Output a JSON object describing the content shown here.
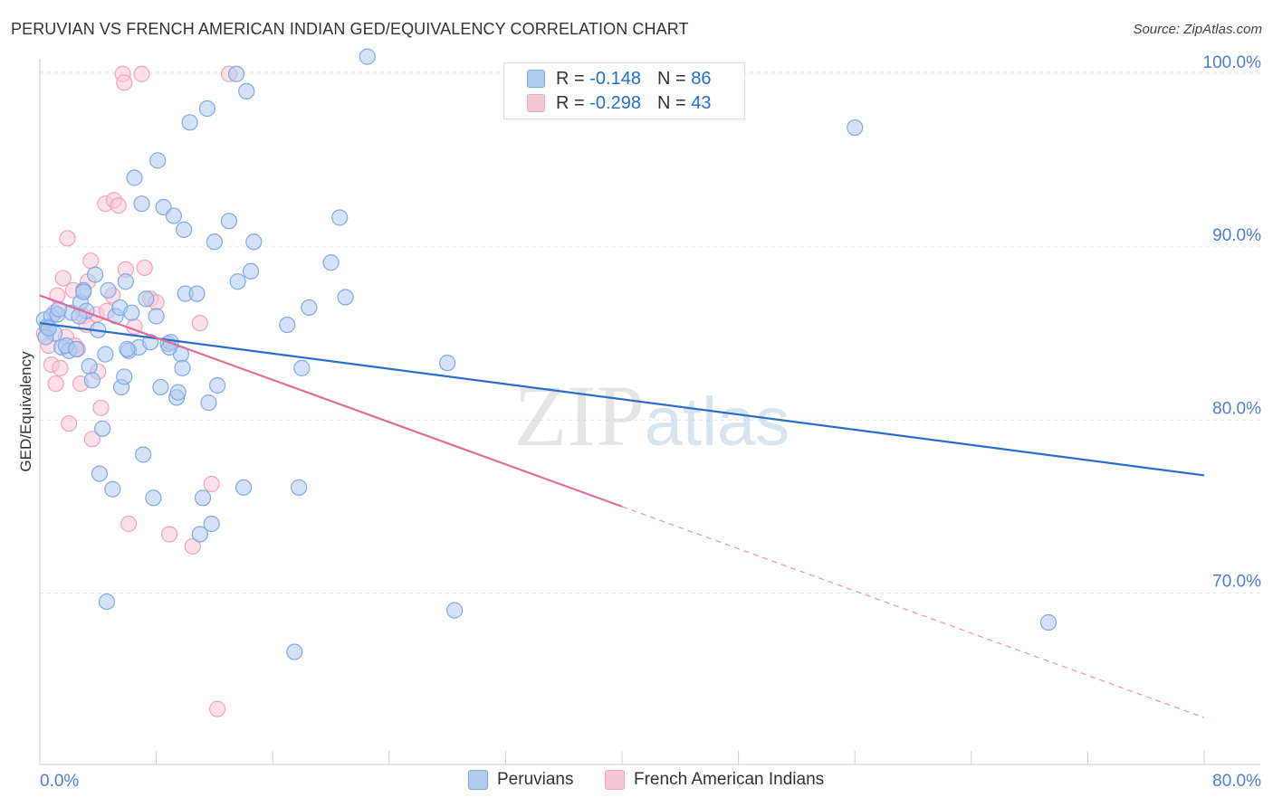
{
  "chart_data": {
    "type": "scatter",
    "title": "PERUVIAN VS FRENCH AMERICAN INDIAN GED/EQUIVALENCY CORRELATION CHART",
    "source": "Source: ZipAtlas.com",
    "watermark": "ZIPatlas",
    "xlabel": "",
    "ylabel": "GED/Equivalency",
    "xlim": [
      0,
      80
    ],
    "ylim": [
      61,
      101.5
    ],
    "x_tick_labels": [
      "0.0%",
      "80.0%"
    ],
    "y_ticks": [
      70,
      80,
      90,
      100
    ],
    "y_tick_labels": [
      "70.0%",
      "80.0%",
      "90.0%",
      "100.0%"
    ],
    "grid": true,
    "legend_position": "top-center",
    "series": [
      {
        "name": "Peruvians",
        "color": "#7fa9e6",
        "fill": "#aecbf1",
        "line_color": "#2a6dcc",
        "r_label": "R =",
        "r_value": "-0.148",
        "n_label": "N =",
        "n_value": "86",
        "trend": {
          "x0": 0,
          "y0": 85.6,
          "x1": 80,
          "y1": 76.8,
          "solid_until": 80
        },
        "points": [
          [
            0.3,
            85.8
          ],
          [
            0.5,
            85.4
          ],
          [
            0.8,
            86.0
          ],
          [
            1.0,
            85.0
          ],
          [
            0.4,
            84.8
          ],
          [
            0.6,
            85.3
          ],
          [
            1.2,
            86.1
          ],
          [
            1.5,
            84.2
          ],
          [
            2.0,
            84.0
          ],
          [
            1.8,
            84.3
          ],
          [
            2.5,
            84.1
          ],
          [
            2.2,
            86.2
          ],
          [
            2.8,
            86.8
          ],
          [
            3.0,
            87.5
          ],
          [
            3.2,
            86.3
          ],
          [
            3.4,
            83.1
          ],
          [
            3.6,
            82.3
          ],
          [
            3.8,
            88.4
          ],
          [
            4.0,
            85.2
          ],
          [
            4.3,
            79.5
          ],
          [
            4.1,
            76.9
          ],
          [
            4.5,
            83.8
          ],
          [
            4.7,
            87.5
          ],
          [
            5.0,
            76.0
          ],
          [
            5.2,
            86.0
          ],
          [
            5.5,
            86.5
          ],
          [
            5.6,
            81.9
          ],
          [
            5.8,
            82.5
          ],
          [
            5.9,
            88.0
          ],
          [
            6.1,
            84.0
          ],
          [
            6.3,
            86.2
          ],
          [
            6.5,
            94.0
          ],
          [
            6.8,
            84.2
          ],
          [
            7.0,
            92.5
          ],
          [
            7.3,
            87.0
          ],
          [
            7.6,
            84.5
          ],
          [
            7.8,
            75.5
          ],
          [
            8.0,
            86.0
          ],
          [
            8.1,
            95.0
          ],
          [
            8.3,
            81.9
          ],
          [
            8.5,
            92.3
          ],
          [
            8.8,
            84.4
          ],
          [
            9.0,
            84.5
          ],
          [
            9.2,
            91.8
          ],
          [
            9.4,
            81.3
          ],
          [
            9.5,
            81.6
          ],
          [
            9.7,
            83.8
          ],
          [
            9.8,
            83.0
          ],
          [
            9.9,
            91.0
          ],
          [
            10.0,
            87.3
          ],
          [
            10.3,
            97.2
          ],
          [
            10.8,
            87.3
          ],
          [
            11.0,
            73.4
          ],
          [
            11.2,
            75.5
          ],
          [
            11.5,
            98.0
          ],
          [
            11.6,
            81.0
          ],
          [
            11.8,
            74.0
          ],
          [
            12.0,
            90.3
          ],
          [
            12.2,
            82.0
          ],
          [
            13.0,
            91.5
          ],
          [
            13.5,
            100.0
          ],
          [
            13.6,
            88.0
          ],
          [
            14.0,
            76.1
          ],
          [
            14.2,
            99.0
          ],
          [
            14.5,
            88.6
          ],
          [
            14.7,
            90.3
          ],
          [
            17.0,
            85.5
          ],
          [
            17.5,
            66.6
          ],
          [
            17.8,
            76.1
          ],
          [
            18.0,
            83.0
          ],
          [
            18.5,
            86.5
          ],
          [
            20.0,
            89.1
          ],
          [
            20.6,
            91.7
          ],
          [
            21.0,
            87.1
          ],
          [
            22.5,
            101.0
          ],
          [
            28.0,
            83.3
          ],
          [
            28.5,
            69.0
          ],
          [
            56.0,
            96.9
          ],
          [
            69.3,
            68.3
          ],
          [
            4.6,
            69.5
          ],
          [
            2.7,
            86.0
          ],
          [
            1.3,
            86.4
          ],
          [
            3.0,
            87.4
          ],
          [
            6.0,
            84.1
          ],
          [
            7.1,
            78.0
          ],
          [
            8.9,
            84.2
          ]
        ]
      },
      {
        "name": "French American Indians",
        "color": "#f0a3bb",
        "fill": "#f7c6d6",
        "line_color": "#e06d95",
        "r_label": "R =",
        "r_value": "-0.298",
        "n_label": "N =",
        "n_value": "43",
        "trend": {
          "x0": 0,
          "y0": 87.2,
          "x1": 80,
          "y1": 62.8,
          "solid_until": 40
        },
        "points": [
          [
            0.3,
            85.0
          ],
          [
            0.6,
            84.3
          ],
          [
            0.8,
            83.2
          ],
          [
            1.0,
            86.2
          ],
          [
            1.1,
            82.1
          ],
          [
            1.2,
            87.2
          ],
          [
            1.4,
            83.0
          ],
          [
            1.6,
            88.2
          ],
          [
            1.8,
            84.8
          ],
          [
            1.9,
            90.5
          ],
          [
            2.0,
            79.8
          ],
          [
            2.3,
            87.5
          ],
          [
            2.4,
            84.3
          ],
          [
            2.6,
            84.1
          ],
          [
            2.8,
            82.1
          ],
          [
            3.0,
            86.0
          ],
          [
            3.2,
            85.5
          ],
          [
            3.3,
            88.0
          ],
          [
            3.5,
            89.2
          ],
          [
            3.6,
            78.9
          ],
          [
            3.9,
            86.1
          ],
          [
            4.0,
            82.8
          ],
          [
            4.2,
            80.7
          ],
          [
            4.5,
            92.5
          ],
          [
            4.6,
            86.3
          ],
          [
            5.0,
            87.2
          ],
          [
            5.1,
            92.7
          ],
          [
            5.4,
            92.4
          ],
          [
            5.7,
            100.0
          ],
          [
            5.8,
            99.5
          ],
          [
            5.9,
            88.7
          ],
          [
            6.1,
            74.0
          ],
          [
            6.5,
            85.4
          ],
          [
            7.0,
            100.0
          ],
          [
            7.2,
            88.8
          ],
          [
            7.6,
            87.0
          ],
          [
            8.0,
            86.8
          ],
          [
            8.9,
            73.4
          ],
          [
            10.5,
            72.7
          ],
          [
            11.0,
            85.6
          ],
          [
            11.8,
            76.3
          ],
          [
            12.2,
            63.3
          ],
          [
            13.0,
            100.0
          ]
        ]
      }
    ]
  },
  "legend_bottom": [
    "Peruvians",
    "French American Indians"
  ]
}
